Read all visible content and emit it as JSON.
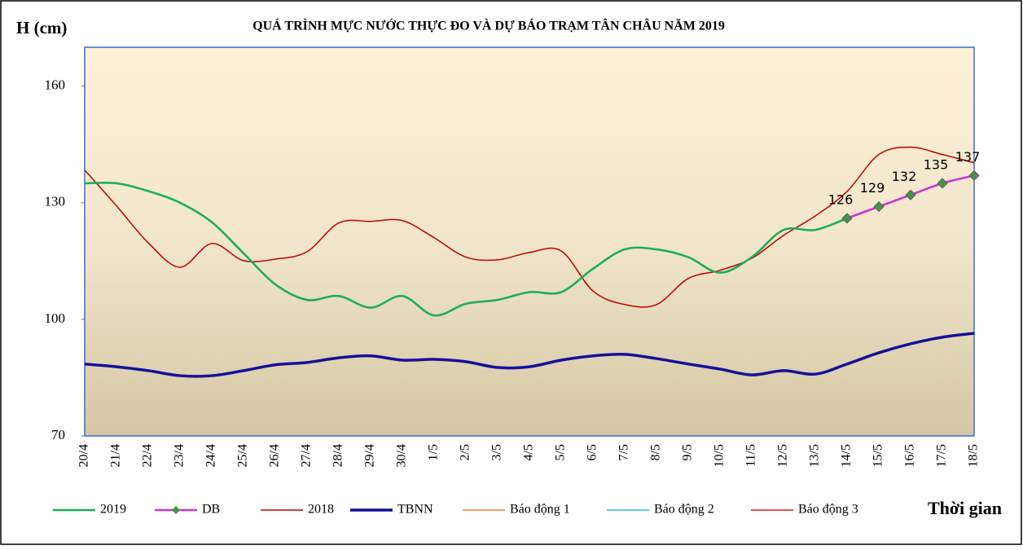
{
  "chart_data": {
    "type": "line",
    "title": "QUÁ TRÌNH MỰC NƯỚC THỰC ĐO VÀ DỰ BÁO TRẠM TÂN CHÂU NĂM 2019",
    "y_label": "H (cm)",
    "x_label": "Thời gian",
    "categories": [
      "20/4",
      "21/4",
      "22/4",
      "23/4",
      "24/4",
      "25/4",
      "26/4",
      "27/4",
      "28/4",
      "29/4",
      "30/4",
      "1/5",
      "2/5",
      "3/5",
      "4/5",
      "5/5",
      "6/5",
      "7/5",
      "8/5",
      "9/5",
      "10/5",
      "11/5",
      "12/5",
      "13/5",
      "14/5",
      "15/5",
      "16/5",
      "17/5",
      "18/5"
    ],
    "ylim": [
      70,
      170
    ],
    "yticks": [
      70,
      100,
      130,
      160
    ],
    "series": [
      {
        "name": "2019",
        "color": "#1fae5a",
        "values": [
          135,
          135,
          133,
          130,
          125,
          117,
          109,
          105,
          106,
          103,
          106,
          101,
          104,
          105,
          107,
          107,
          113,
          118,
          118,
          116,
          112,
          116,
          123,
          123,
          126,
          null,
          null,
          null,
          null
        ]
      },
      {
        "name": "DB",
        "color": "#cc33cc",
        "marker": "diamond",
        "marker_color": "#3c9a3c",
        "data_labels": true,
        "values": [
          null,
          null,
          null,
          null,
          null,
          null,
          null,
          null,
          null,
          null,
          null,
          null,
          null,
          null,
          null,
          null,
          null,
          null,
          null,
          null,
          null,
          null,
          null,
          null,
          126,
          129,
          132,
          135,
          137
        ]
      },
      {
        "name": "2018",
        "color": "#c00000",
        "values": [
          138.4,
          129.2,
          119.7,
          113.4,
          119.5,
          115.1,
          115.5,
          117.4,
          124.8,
          125.2,
          125.4,
          121,
          116,
          115.3,
          117.2,
          117.6,
          107.3,
          103.8,
          103.8,
          110.5,
          112.6,
          115.7,
          121.6,
          126.6,
          132.9,
          142.4,
          144.3,
          142.4,
          140.3
        ]
      },
      {
        "name": "TBNN",
        "color": "#12129a",
        "values": [
          88.5,
          87.8,
          86.8,
          85.5,
          85.5,
          86.8,
          88.3,
          88.9,
          90.1,
          90.6,
          89.5,
          89.7,
          89.1,
          87.6,
          87.8,
          89.5,
          90.6,
          91,
          89.9,
          88.5,
          87.2,
          85.7,
          86.8,
          85.9,
          88.5,
          91.4,
          93.7,
          95.4,
          96.4
        ]
      },
      {
        "name": "Báo động 1",
        "color": "#e8822a",
        "values": [
          null,
          null,
          null,
          null,
          null,
          null,
          null,
          null,
          null,
          null,
          null,
          null,
          null,
          null,
          null,
          null,
          null,
          null,
          null,
          null,
          null,
          null,
          null,
          null,
          null,
          null,
          null,
          null,
          null
        ]
      },
      {
        "name": "Báo động 2",
        "color": "#2ab8d8",
        "values": [
          null,
          null,
          null,
          null,
          null,
          null,
          null,
          null,
          null,
          null,
          null,
          null,
          null,
          null,
          null,
          null,
          null,
          null,
          null,
          null,
          null,
          null,
          null,
          null,
          null,
          null,
          null,
          null,
          null
        ]
      },
      {
        "name": "Báo động 3",
        "color": "#d81818",
        "values": [
          null,
          null,
          null,
          null,
          null,
          null,
          null,
          null,
          null,
          null,
          null,
          null,
          null,
          null,
          null,
          null,
          null,
          null,
          null,
          null,
          null,
          null,
          null,
          null,
          null,
          null,
          null,
          null,
          null
        ]
      }
    ]
  }
}
